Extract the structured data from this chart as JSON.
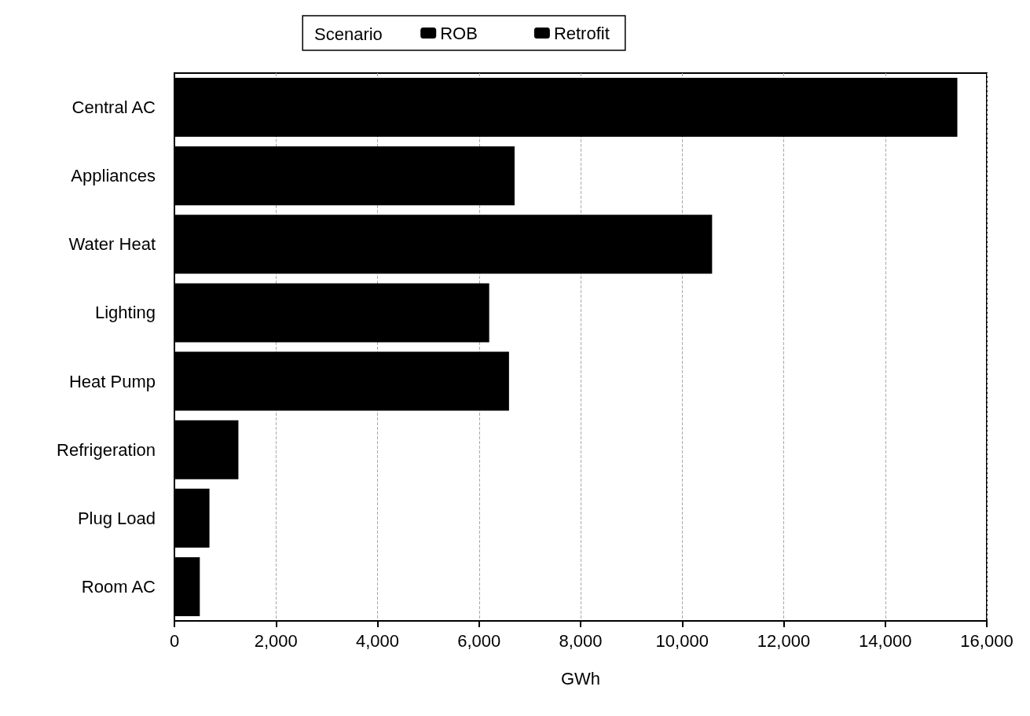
{
  "chart_data": {
    "type": "bar",
    "orientation": "horizontal",
    "stacked": true,
    "xlabel": "GWh",
    "legend_title": "Scenario",
    "legend": "top",
    "categories": [
      "Central AC",
      "Appliances",
      "Water Heat",
      "Lighting",
      "Heat Pump",
      "Refrigeration",
      "Plug Load",
      "Room AC"
    ],
    "series": [
      {
        "name": "ROB",
        "color": "#000000",
        "values": [
          15420,
          6700,
          10590,
          6200,
          6590,
          1260,
          690,
          500
        ]
      },
      {
        "name": "Retrofit",
        "color": "#000000",
        "values": [
          null,
          null,
          null,
          null,
          null,
          null,
          null,
          null
        ]
      }
    ],
    "xlim": [
      0,
      16000
    ],
    "xticks": [
      {
        "value": 0,
        "label": "0"
      },
      {
        "value": 2000,
        "label": "2,000"
      },
      {
        "value": 4000,
        "label": "4,000"
      },
      {
        "value": 6000,
        "label": "6,000"
      },
      {
        "value": 8000,
        "label": "8,000"
      },
      {
        "value": 10000,
        "label": "10,000"
      },
      {
        "value": 12000,
        "label": "12,000"
      },
      {
        "value": 14000,
        "label": "14,000"
      },
      {
        "value": 16000,
        "label": "16,000"
      }
    ],
    "grid": "x"
  }
}
